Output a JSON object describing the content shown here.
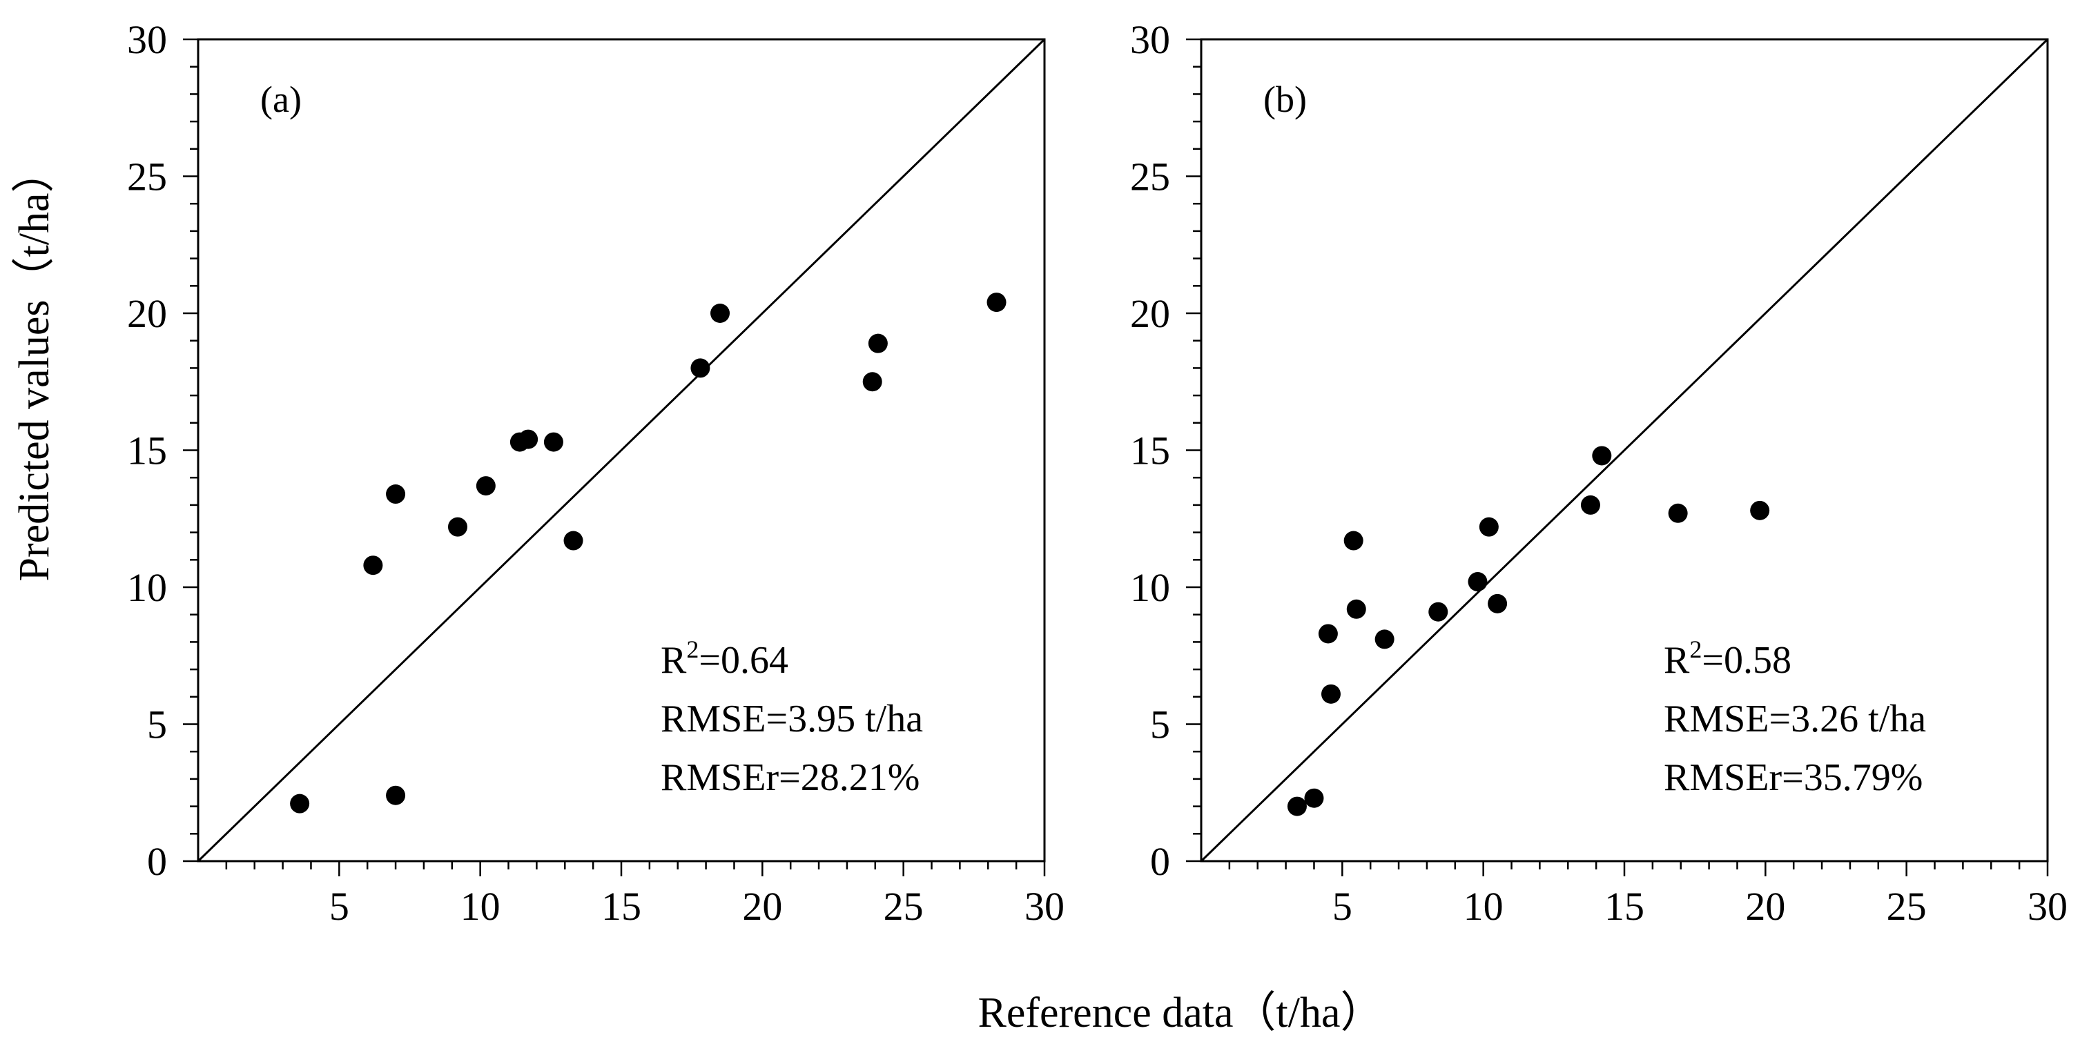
{
  "figure": {
    "x_axis_title": "Reference data（t/ha）",
    "y_axis_title": "Predicted values（t/ha）"
  },
  "chart_data": [
    {
      "type": "scatter",
      "panel_label": "(a)",
      "xlim": [
        0,
        30
      ],
      "ylim": [
        0,
        30
      ],
      "x_ticks": [
        "5",
        "10",
        "15",
        "20",
        "25",
        "30"
      ],
      "y_ticks": [
        "0",
        "5",
        "10",
        "15",
        "20",
        "25",
        "30"
      ],
      "reference_line": "1:1",
      "stats": {
        "r2_prefix": "R",
        "r2_sup": "2",
        "r2_value": "=0.64",
        "rmse": "RMSE=3.95 t/ha",
        "rmser": "RMSEr=28.21%"
      },
      "points": [
        {
          "x": 3.6,
          "y": 2.1
        },
        {
          "x": 7.0,
          "y": 2.4
        },
        {
          "x": 6.2,
          "y": 10.8
        },
        {
          "x": 7.0,
          "y": 13.4
        },
        {
          "x": 9.2,
          "y": 12.2
        },
        {
          "x": 10.2,
          "y": 13.7
        },
        {
          "x": 11.4,
          "y": 15.3
        },
        {
          "x": 11.7,
          "y": 15.4
        },
        {
          "x": 12.6,
          "y": 15.3
        },
        {
          "x": 13.3,
          "y": 11.7
        },
        {
          "x": 17.8,
          "y": 18.0
        },
        {
          "x": 18.5,
          "y": 20.0
        },
        {
          "x": 23.9,
          "y": 17.5
        },
        {
          "x": 24.1,
          "y": 18.9
        },
        {
          "x": 28.3,
          "y": 20.4
        }
      ]
    },
    {
      "type": "scatter",
      "panel_label": "(b)",
      "xlim": [
        0,
        30
      ],
      "ylim": [
        0,
        30
      ],
      "x_ticks": [
        "5",
        "10",
        "15",
        "20",
        "25",
        "30"
      ],
      "y_ticks": [
        "0",
        "5",
        "10",
        "15",
        "20",
        "25",
        "30"
      ],
      "reference_line": "1:1",
      "stats": {
        "r2_prefix": "R",
        "r2_sup": "2",
        "r2_value": "=0.58",
        "rmse": "RMSE=3.26 t/ha",
        "rmser": "RMSEr=35.79%"
      },
      "points": [
        {
          "x": 3.4,
          "y": 2.0
        },
        {
          "x": 4.0,
          "y": 2.3
        },
        {
          "x": 4.5,
          "y": 8.3
        },
        {
          "x": 4.6,
          "y": 6.1
        },
        {
          "x": 5.4,
          "y": 11.7
        },
        {
          "x": 5.5,
          "y": 9.2
        },
        {
          "x": 6.5,
          "y": 8.1
        },
        {
          "x": 8.4,
          "y": 9.1
        },
        {
          "x": 9.8,
          "y": 10.2
        },
        {
          "x": 10.2,
          "y": 12.2
        },
        {
          "x": 10.5,
          "y": 9.4
        },
        {
          "x": 13.8,
          "y": 13.0
        },
        {
          "x": 14.2,
          "y": 14.8
        },
        {
          "x": 16.9,
          "y": 12.7
        },
        {
          "x": 19.8,
          "y": 12.8
        }
      ]
    }
  ]
}
